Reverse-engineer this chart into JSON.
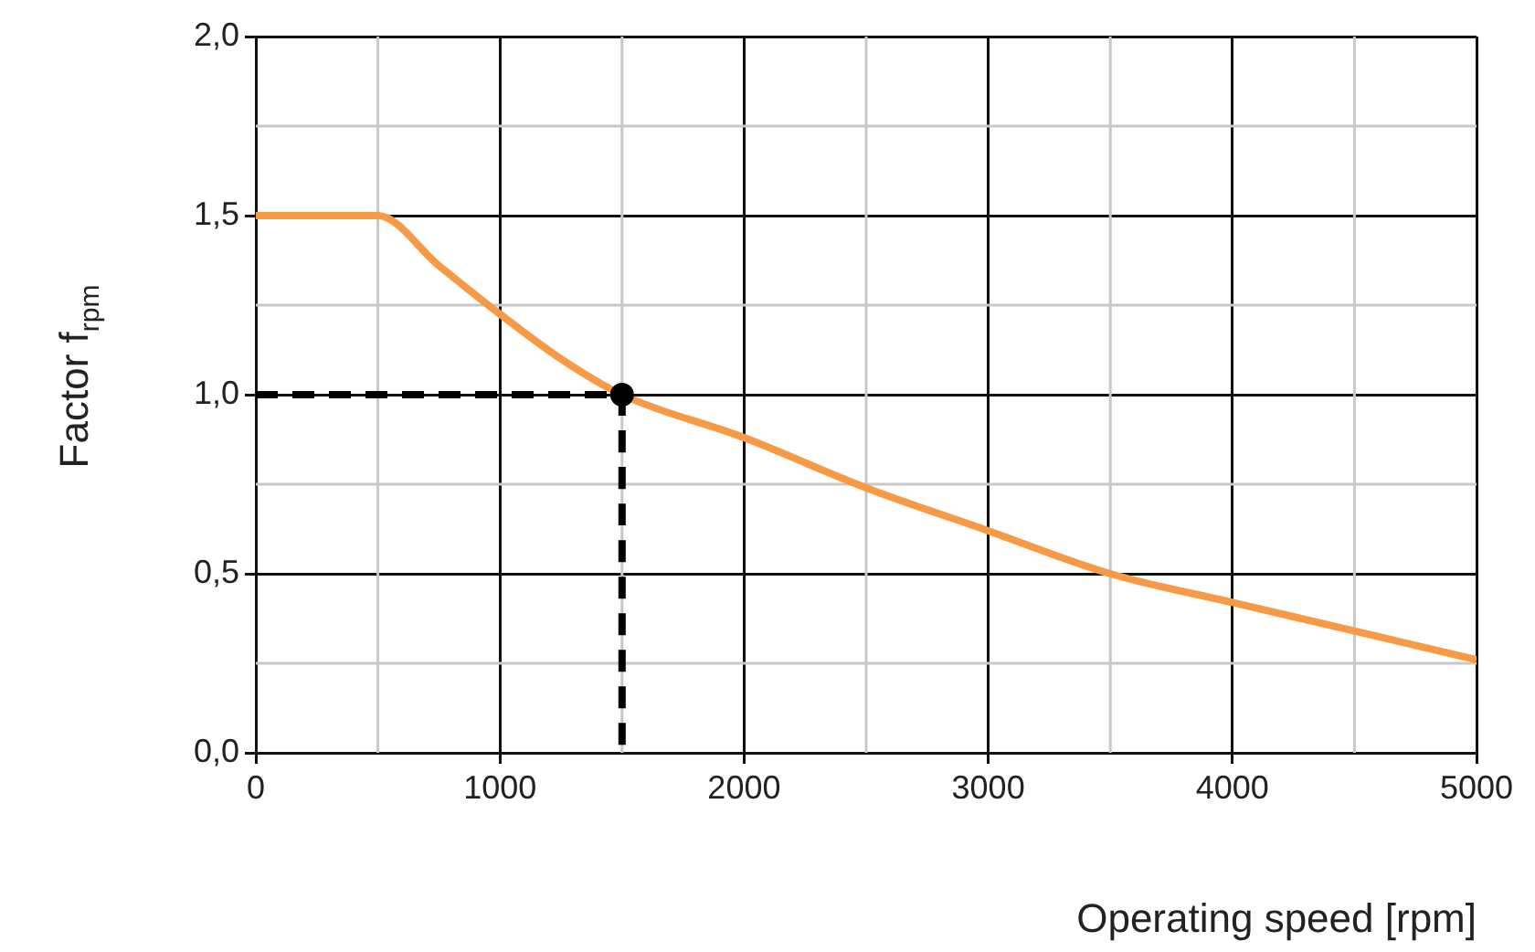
{
  "chart_data": {
    "type": "line",
    "xlabel": "Operating speed [rpm]",
    "ylabel": "Factor f$_{rpm}$",
    "xlim": [
      0,
      5000
    ],
    "xticks": [
      0,
      1000,
      2000,
      3000,
      4000,
      5000
    ],
    "ylim": [
      0,
      2
    ],
    "yticks": [
      {
        "value": 0,
        "label": "0,0"
      },
      {
        "value": 0.5,
        "label": "0,5"
      },
      {
        "value": 1,
        "label": "1,0"
      },
      {
        "value": 1.5,
        "label": "1,5"
      },
      {
        "value": 2,
        "label": "2,0"
      }
    ],
    "grid": true,
    "legend": false,
    "series": [
      {
        "type": "line",
        "color": "#f79a45",
        "marker": "none",
        "line_style": "solid",
        "x": [
          0,
          500,
          750,
          1000,
          1250,
          1500,
          2000,
          2500,
          3000,
          3500,
          4000,
          4500,
          5000
        ],
        "values": [
          1.5,
          1.5,
          1.36,
          1.225,
          1.1,
          1.0,
          0.88,
          0.74,
          0.62,
          0.5,
          0.42,
          0.34,
          0.26
        ]
      },
      {
        "type": "line",
        "color": "#000000",
        "marker": "none",
        "line_style": "dashed",
        "x": [
          0,
          1500,
          1500
        ],
        "values": [
          1.0,
          1.0,
          0
        ]
      },
      {
        "type": "scatter",
        "color": "#000000",
        "marker": "circle",
        "x": [
          1500
        ],
        "values": [
          1.0
        ]
      }
    ]
  }
}
